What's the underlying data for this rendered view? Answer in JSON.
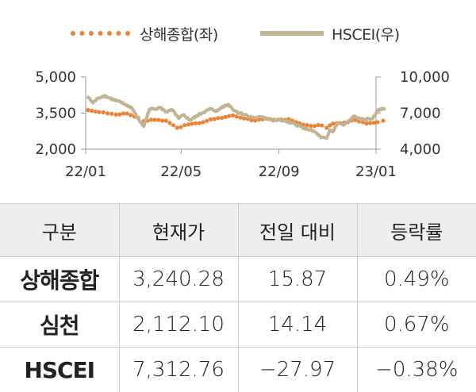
{
  "legend": {
    "series1": "상해종합(좌)",
    "series2": "HSCEI(우)"
  },
  "chart_data": {
    "type": "line",
    "x_ticks": [
      "22/01",
      "22/05",
      "22/09",
      "23/01"
    ],
    "y_left": {
      "ticks": [
        "5,000",
        "3,500",
        "2,000"
      ],
      "range": [
        2000,
        5000
      ]
    },
    "y_right": {
      "ticks": [
        "10,000",
        "7,000",
        "4,000"
      ],
      "range": [
        4000,
        10000
      ]
    },
    "grid": false,
    "legend_position": "top",
    "series": [
      {
        "name": "상해종합(좌)",
        "axis": "left",
        "style": "dotted",
        "color": "#ec8233",
        "values": [
          {
            "x": "2022-01-04",
            "y": 3630
          },
          {
            "x": "2022-01-18",
            "y": 3540
          },
          {
            "x": "2022-02-08",
            "y": 3440
          },
          {
            "x": "2022-02-22",
            "y": 3480
          },
          {
            "x": "2022-03-08",
            "y": 3300
          },
          {
            "x": "2022-03-15",
            "y": 3170
          },
          {
            "x": "2022-03-29",
            "y": 3220
          },
          {
            "x": "2022-04-12",
            "y": 3180
          },
          {
            "x": "2022-04-26",
            "y": 2890
          },
          {
            "x": "2022-05-10",
            "y": 3030
          },
          {
            "x": "2022-05-24",
            "y": 3080
          },
          {
            "x": "2022-06-07",
            "y": 3240
          },
          {
            "x": "2022-06-21",
            "y": 3300
          },
          {
            "x": "2022-07-05",
            "y": 3400
          },
          {
            "x": "2022-07-19",
            "y": 3280
          },
          {
            "x": "2022-08-02",
            "y": 3190
          },
          {
            "x": "2022-08-16",
            "y": 3270
          },
          {
            "x": "2022-08-30",
            "y": 3220
          },
          {
            "x": "2022-09-13",
            "y": 3250
          },
          {
            "x": "2022-09-27",
            "y": 3070
          },
          {
            "x": "2022-10-11",
            "y": 2970
          },
          {
            "x": "2022-10-25",
            "y": 2990
          },
          {
            "x": "2022-10-31",
            "y": 2890
          },
          {
            "x": "2022-11-08",
            "y": 3060
          },
          {
            "x": "2022-11-22",
            "y": 3100
          },
          {
            "x": "2022-12-06",
            "y": 3210
          },
          {
            "x": "2022-12-20",
            "y": 3070
          },
          {
            "x": "2023-01-03",
            "y": 3120
          },
          {
            "x": "2023-01-10",
            "y": 3180
          }
        ]
      },
      {
        "name": "HSCEI(우)",
        "axis": "right",
        "style": "solid",
        "color": "#c2b393",
        "values": [
          {
            "x": "2022-01-03",
            "y": 8400
          },
          {
            "x": "2022-01-10",
            "y": 7850
          },
          {
            "x": "2022-01-17",
            "y": 8250
          },
          {
            "x": "2022-01-24",
            "y": 8450
          },
          {
            "x": "2022-02-07",
            "y": 8050
          },
          {
            "x": "2022-02-14",
            "y": 7900
          },
          {
            "x": "2022-02-28",
            "y": 7450
          },
          {
            "x": "2022-03-07",
            "y": 6600
          },
          {
            "x": "2022-03-15",
            "y": 5900
          },
          {
            "x": "2022-03-22",
            "y": 7300
          },
          {
            "x": "2022-04-05",
            "y": 7450
          },
          {
            "x": "2022-04-12",
            "y": 7100
          },
          {
            "x": "2022-04-20",
            "y": 7250
          },
          {
            "x": "2022-04-28",
            "y": 6550
          },
          {
            "x": "2022-05-04",
            "y": 6850
          },
          {
            "x": "2022-05-12",
            "y": 6400
          },
          {
            "x": "2022-05-19",
            "y": 6700
          },
          {
            "x": "2022-05-27",
            "y": 7000
          },
          {
            "x": "2022-06-07",
            "y": 7350
          },
          {
            "x": "2022-06-15",
            "y": 7150
          },
          {
            "x": "2022-06-22",
            "y": 7550
          },
          {
            "x": "2022-06-30",
            "y": 7700
          },
          {
            "x": "2022-07-07",
            "y": 7200
          },
          {
            "x": "2022-07-14",
            "y": 7000
          },
          {
            "x": "2022-07-21",
            "y": 6850
          },
          {
            "x": "2022-07-28",
            "y": 6650
          },
          {
            "x": "2022-08-04",
            "y": 6600
          },
          {
            "x": "2022-08-11",
            "y": 6700
          },
          {
            "x": "2022-08-18",
            "y": 6550
          },
          {
            "x": "2022-08-25",
            "y": 6350
          },
          {
            "x": "2022-09-01",
            "y": 6450
          },
          {
            "x": "2022-09-08",
            "y": 6350
          },
          {
            "x": "2022-09-15",
            "y": 6200
          },
          {
            "x": "2022-09-22",
            "y": 6050
          },
          {
            "x": "2022-09-29",
            "y": 5850
          },
          {
            "x": "2022-10-10",
            "y": 5600
          },
          {
            "x": "2022-10-17",
            "y": 5400
          },
          {
            "x": "2022-10-24",
            "y": 4950
          },
          {
            "x": "2022-10-31",
            "y": 4900
          },
          {
            "x": "2022-11-04",
            "y": 5600
          },
          {
            "x": "2022-11-08",
            "y": 5450
          },
          {
            "x": "2022-11-14",
            "y": 6200
          },
          {
            "x": "2022-11-21",
            "y": 6000
          },
          {
            "x": "2022-11-28",
            "y": 6350
          },
          {
            "x": "2022-12-05",
            "y": 6750
          },
          {
            "x": "2022-12-12",
            "y": 6450
          },
          {
            "x": "2022-12-19",
            "y": 6500
          },
          {
            "x": "2022-12-27",
            "y": 6550
          },
          {
            "x": "2023-01-03",
            "y": 7200
          },
          {
            "x": "2023-01-09",
            "y": 7400
          },
          {
            "x": "2023-01-13",
            "y": 7310
          }
        ]
      }
    ]
  },
  "table": {
    "headers": [
      "구분",
      "현재가",
      "전일 대비",
      "등락률"
    ],
    "rows": [
      [
        "상해종합",
        "3,240.28",
        "15.87",
        "0.49%"
      ],
      [
        "심천",
        "2,112.10",
        "14.14",
        "0.67%"
      ],
      [
        "HSCEI",
        "7,312.76",
        "−27.97",
        "−0.38%"
      ]
    ]
  }
}
